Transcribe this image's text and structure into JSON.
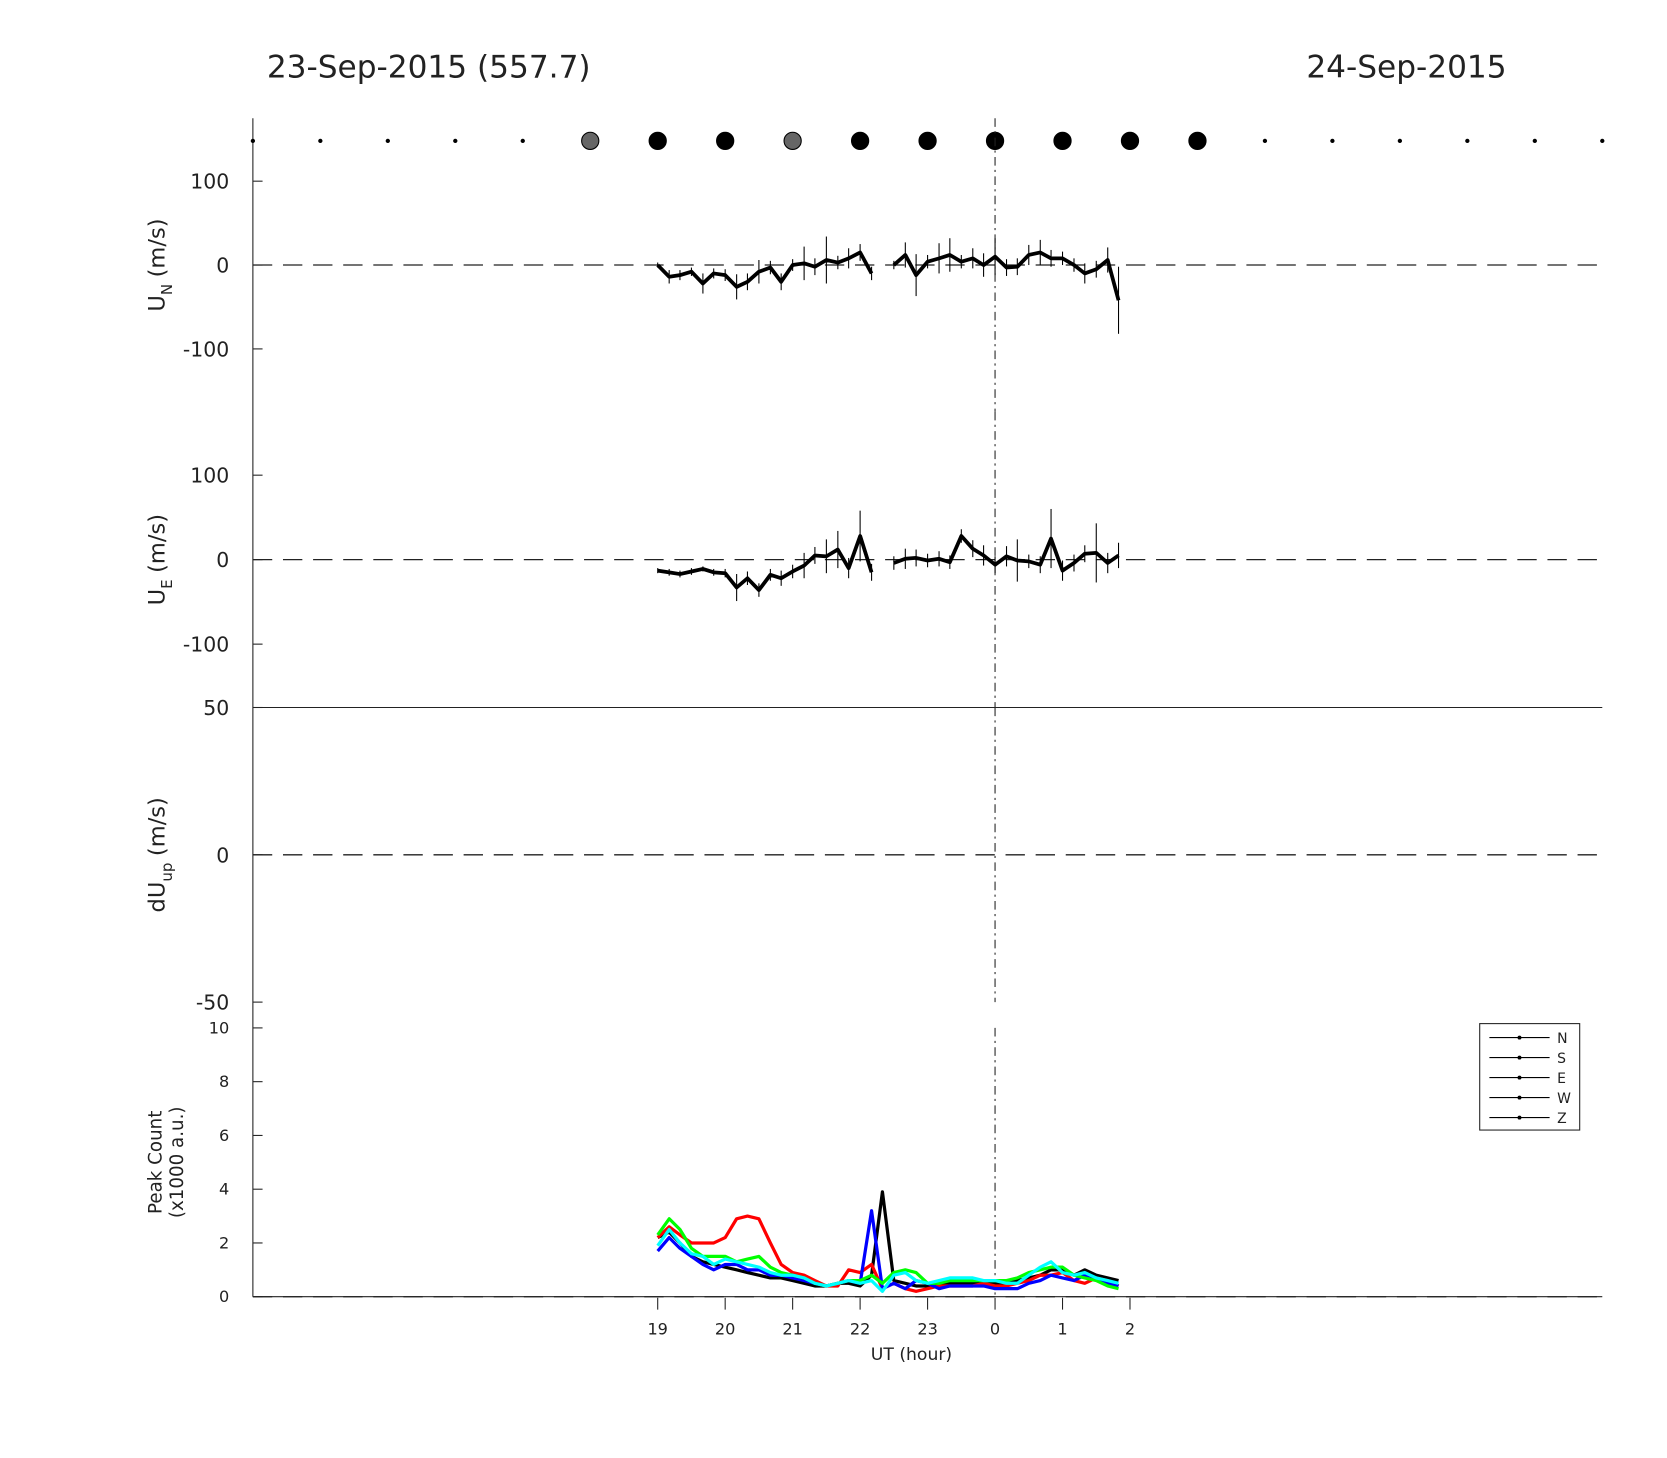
{
  "titles": {
    "left": "23-Sep-2015 (557.7)",
    "right": "24-Sep-2015"
  },
  "chart_data": [
    {
      "type": "marker-row",
      "xlim": [
        13,
        33
      ],
      "x": [
        13,
        14,
        15,
        16,
        17,
        18,
        19,
        20,
        21,
        22,
        23,
        24,
        25,
        26,
        27,
        28,
        29,
        30,
        31,
        32,
        33
      ],
      "colors": [
        "#000",
        "#000",
        "#000",
        "#000",
        "#000",
        "#666",
        "#000",
        "#000",
        "#666",
        "#000",
        "#000",
        "#000",
        "#000",
        "#000",
        "#000",
        "#000",
        "#000",
        "#000",
        "#000",
        "#000",
        "#000"
      ],
      "sizes": [
        2,
        2,
        2,
        2,
        2,
        8,
        8,
        8,
        8,
        8,
        8,
        8,
        8,
        8,
        8,
        2,
        2,
        2,
        2,
        2,
        2
      ]
    },
    {
      "type": "errorbar-line",
      "ylabel": {
        "main": "U",
        "sub": "N",
        "unit": "(m/s)"
      },
      "xlim": [
        13,
        33
      ],
      "ylim": [
        -175,
        175
      ],
      "yticks": [
        -100,
        0,
        100
      ],
      "zero_line": true,
      "vline": 24,
      "x": [
        19,
        19.17,
        19.33,
        19.5,
        19.67,
        19.83,
        20,
        20.17,
        20.33,
        20.5,
        20.67,
        20.83,
        21,
        21.17,
        21.33,
        21.5,
        21.67,
        21.83,
        22,
        22.17,
        22.33,
        22.5,
        22.67,
        22.83,
        23,
        23.17,
        23.33,
        23.5,
        23.67,
        23.83,
        24,
        24.17,
        24.33,
        24.5,
        24.67,
        24.83,
        25,
        25.17,
        25.33,
        25.5,
        25.67,
        25.83
      ],
      "series": [
        {
          "color": "#000",
          "values": [
            0,
            -14,
            -12,
            -8,
            -22,
            -10,
            -12,
            -26,
            -20,
            -8,
            -3,
            -20,
            0,
            2,
            -2,
            6,
            3,
            8,
            15,
            -10,
            null,
            0,
            12,
            -12,
            4,
            8,
            12,
            4,
            8,
            0,
            10,
            -3,
            -2,
            12,
            15,
            8,
            8,
            0,
            -10,
            -5,
            6,
            -42
          ],
          "errors": [
            3,
            8,
            6,
            5,
            12,
            6,
            7,
            15,
            10,
            14,
            8,
            10,
            7,
            20,
            10,
            28,
            8,
            12,
            10,
            8,
            null,
            5,
            15,
            25,
            8,
            18,
            20,
            8,
            12,
            14,
            22,
            10,
            10,
            12,
            15,
            10,
            8,
            8,
            12,
            10,
            15,
            40
          ]
        }
      ]
    },
    {
      "type": "errorbar-line",
      "ylabel": {
        "main": "U",
        "sub": "E",
        "unit": "(m/s)"
      },
      "xlim": [
        13,
        33
      ],
      "ylim": [
        -175,
        175
      ],
      "yticks": [
        -100,
        0,
        100
      ],
      "zero_line": true,
      "vline": 24,
      "x": [
        19,
        19.17,
        19.33,
        19.5,
        19.67,
        19.83,
        20,
        20.17,
        20.33,
        20.5,
        20.67,
        20.83,
        21,
        21.17,
        21.33,
        21.5,
        21.67,
        21.83,
        22,
        22.17,
        22.33,
        22.5,
        22.67,
        22.83,
        23,
        23.17,
        23.33,
        23.5,
        23.67,
        23.83,
        24,
        24.17,
        24.33,
        24.5,
        24.67,
        24.83,
        25,
        25.17,
        25.33,
        25.5,
        25.67,
        25.83
      ],
      "series": [
        {
          "color": "#000",
          "values": [
            -13,
            -15,
            -17,
            -14,
            -11,
            -15,
            -16,
            -33,
            -22,
            -36,
            -18,
            -22,
            -14,
            -7,
            5,
            4,
            12,
            -10,
            28,
            -15,
            null,
            -4,
            1,
            2,
            -1,
            1,
            -3,
            28,
            13,
            5,
            -6,
            4,
            -1,
            -2,
            -6,
            25,
            -13,
            -4,
            7,
            8,
            -4,
            5
          ],
          "errors": [
            3,
            4,
            4,
            4,
            3,
            4,
            5,
            16,
            8,
            8,
            7,
            9,
            8,
            15,
            10,
            20,
            22,
            12,
            30,
            10,
            null,
            8,
            12,
            10,
            8,
            9,
            8,
            8,
            10,
            12,
            10,
            12,
            25,
            8,
            10,
            35,
            12,
            10,
            10,
            35,
            12,
            15
          ]
        }
      ]
    },
    {
      "type": "errorbar-line",
      "ylabel": {
        "main": "dU",
        "sub": "up",
        "unit": "(m/s)"
      },
      "xlim": [
        13,
        33
      ],
      "ylim": [
        -50,
        50
      ],
      "yticks": [
        -50,
        0,
        50
      ],
      "zero_line": true,
      "vline": 24,
      "x": [],
      "series": []
    },
    {
      "type": "line",
      "ylabel": {
        "line1": "Peak Count",
        "line2": "(x1000 a.u.)"
      },
      "xlabel": "UT (hour)",
      "xlim": [
        13,
        33
      ],
      "ylim": [
        0,
        10
      ],
      "yticks": [
        0,
        2,
        4,
        6,
        8,
        10
      ],
      "zero_line": true,
      "vline": 24,
      "xticks": [
        19,
        20,
        21,
        22,
        23,
        {
          "value": 24,
          "label": "0"
        },
        {
          "value": 25,
          "label": "1"
        },
        {
          "value": 26,
          "label": "2"
        }
      ],
      "legend": "right",
      "legend_color": "#000",
      "x": [
        19,
        19.17,
        19.33,
        19.5,
        19.67,
        19.83,
        20,
        20.17,
        20.33,
        20.5,
        20.67,
        20.83,
        21,
        21.17,
        21.33,
        21.5,
        21.67,
        21.83,
        22,
        22.17,
        22.33,
        22.5,
        22.67,
        22.83,
        23,
        23.17,
        23.33,
        23.5,
        23.67,
        23.83,
        24,
        24.17,
        24.33,
        24.5,
        24.67,
        24.83,
        25,
        25.17,
        25.33,
        25.5,
        25.67,
        25.83
      ],
      "series": [
        {
          "name": "N",
          "color": "#000000",
          "values": [
            2.2,
            2.4,
            2.0,
            1.5,
            1.3,
            1.2,
            1.1,
            1.0,
            0.9,
            0.8,
            0.7,
            0.7,
            0.6,
            0.5,
            0.4,
            0.4,
            0.5,
            0.5,
            0.4,
            0.8,
            3.9,
            0.6,
            0.5,
            0.4,
            0.4,
            0.4,
            0.5,
            0.5,
            0.5,
            0.5,
            0.5,
            0.5,
            0.6,
            0.7,
            0.8,
            1.0,
            1.0,
            0.8,
            1.0,
            0.8,
            0.7,
            0.6
          ]
        },
        {
          "name": "S",
          "color": "#ff0000",
          "values": [
            2.2,
            2.6,
            2.3,
            2.0,
            2.0,
            2.0,
            2.2,
            2.9,
            3.0,
            2.9,
            2.0,
            1.2,
            0.9,
            0.8,
            0.6,
            0.4,
            0.4,
            1.0,
            0.9,
            1.2,
            0.3,
            0.5,
            0.3,
            0.2,
            0.3,
            0.4,
            0.4,
            0.4,
            0.4,
            0.5,
            0.4,
            0.4,
            0.5,
            0.6,
            0.8,
            0.8,
            0.9,
            0.6,
            0.5,
            0.7,
            0.6,
            0.4
          ]
        },
        {
          "name": "E",
          "color": "#0000ff",
          "values": [
            1.7,
            2.2,
            1.8,
            1.5,
            1.2,
            1.0,
            1.2,
            1.2,
            1.0,
            1.0,
            0.8,
            0.8,
            0.7,
            0.6,
            0.5,
            0.4,
            0.5,
            0.6,
            0.5,
            3.2,
            0.3,
            0.5,
            0.3,
            0.6,
            0.5,
            0.3,
            0.4,
            0.4,
            0.4,
            0.4,
            0.3,
            0.3,
            0.3,
            0.5,
            0.6,
            0.8,
            0.7,
            0.6,
            0.8,
            0.7,
            0.5,
            0.4
          ]
        },
        {
          "name": "W",
          "color": "#00ff00",
          "values": [
            2.3,
            2.9,
            2.5,
            1.8,
            1.5,
            1.5,
            1.5,
            1.3,
            1.4,
            1.5,
            1.1,
            0.9,
            0.8,
            0.7,
            0.5,
            0.4,
            0.5,
            0.6,
            0.6,
            0.8,
            0.5,
            0.9,
            1.0,
            0.9,
            0.5,
            0.5,
            0.6,
            0.6,
            0.6,
            0.6,
            0.6,
            0.6,
            0.7,
            0.9,
            1.0,
            1.1,
            1.1,
            0.8,
            0.7,
            0.6,
            0.4,
            0.3
          ]
        },
        {
          "name": "Z",
          "color": "#00ffff",
          "values": [
            1.9,
            2.5,
            2.0,
            1.6,
            1.5,
            1.2,
            1.4,
            1.3,
            1.2,
            1.1,
            0.9,
            0.8,
            0.8,
            0.7,
            0.5,
            0.4,
            0.5,
            0.6,
            0.5,
            0.6,
            0.2,
            0.8,
            0.9,
            0.6,
            0.5,
            0.6,
            0.7,
            0.7,
            0.7,
            0.6,
            0.6,
            0.5,
            0.5,
            0.8,
            1.1,
            1.3,
            0.9,
            0.8,
            0.9,
            0.7,
            0.6,
            0.5
          ]
        }
      ]
    }
  ]
}
